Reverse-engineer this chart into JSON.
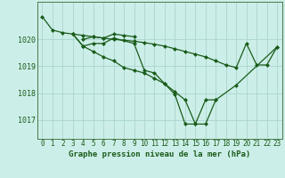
{
  "background_color": "#cceee8",
  "grid_color": "#aad4ce",
  "line_color": "#1a5c1a",
  "title": "Graphe pression niveau de la mer (hPa)",
  "ylabel_ticks": [
    1017,
    1018,
    1019,
    1020
  ],
  "ylim": [
    1016.3,
    1021.4
  ],
  "xlim": [
    -0.5,
    23.5
  ],
  "line1_x": [
    0,
    1,
    2,
    3,
    4,
    5,
    6,
    7,
    9,
    10,
    11,
    12,
    13,
    14,
    15,
    16,
    17
  ],
  "line1_y": [
    1020.85,
    1020.35,
    1020.25,
    1020.2,
    1019.75,
    1019.85,
    1019.85,
    1020.05,
    1019.85,
    1018.85,
    1018.75,
    1018.35,
    1017.95,
    1016.85,
    1016.85,
    1017.75,
    1017.75
  ],
  "line2_x": [
    3,
    4,
    5,
    6,
    7,
    8,
    9,
    10,
    11,
    12,
    13,
    14,
    15,
    16,
    17,
    18,
    19,
    20,
    21,
    22,
    23
  ],
  "line2_y": [
    1020.2,
    1020.15,
    1020.1,
    1020.05,
    1020.0,
    1019.97,
    1019.93,
    1019.88,
    1019.82,
    1019.75,
    1019.65,
    1019.55,
    1019.45,
    1019.35,
    1019.2,
    1019.05,
    1018.95,
    1019.85,
    1019.05,
    1019.05,
    1019.72
  ],
  "line3_x": [
    4,
    5,
    6,
    7,
    8,
    9
  ],
  "line3_y": [
    1020.0,
    1020.1,
    1020.05,
    1020.2,
    1020.15,
    1020.1
  ],
  "line4_x": [
    3,
    4,
    5,
    6,
    7,
    8,
    9,
    10,
    11,
    12,
    13,
    14,
    15,
    16,
    17,
    19,
    23
  ],
  "line4_y": [
    1020.2,
    1019.75,
    1019.55,
    1019.35,
    1019.2,
    1018.95,
    1018.85,
    1018.75,
    1018.55,
    1018.35,
    1018.05,
    1017.75,
    1016.85,
    1016.85,
    1017.75,
    1018.3,
    1019.72
  ],
  "tick_fontsize": 5.5,
  "label_fontsize": 6.5
}
